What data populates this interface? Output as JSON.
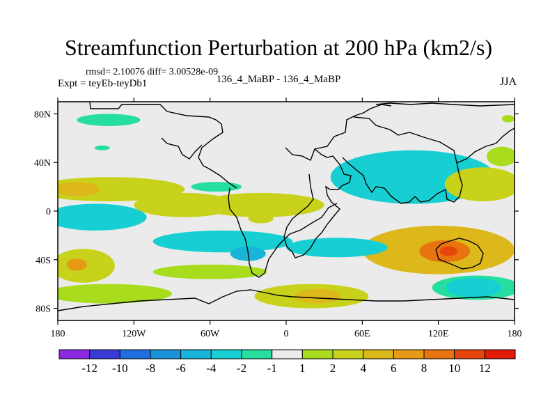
{
  "title": "Streamfunction Perturbation at 200 hPa (km2/s)",
  "stats": "rmsd= 2.10076 diff= 3.00528e-09",
  "expt": "Expt = teyEb-teyDb1",
  "case": "136_4_MaBP - 136_4_MaBP",
  "season": "JJA",
  "colors": {
    "-13": "#8a2be2",
    "-11": "#3a3ad8",
    "-9": "#1f6fe0",
    "-7": "#1a92d8",
    "-5": "#19b5d8",
    "-3": "#17cfd2",
    "-1.5": "#26dea0",
    "0": "#ebebeb",
    "1.5": "#a8dc1c",
    "3": "#c8d21a",
    "5": "#dcb81a",
    "7": "#e69a16",
    "9": "#e8740f",
    "11": "#e6460b",
    "13": "#e21a08"
  },
  "chart_data": {
    "type": "heatmap",
    "projection": "cylindrical-equidistant",
    "xlim": [
      -180,
      180
    ],
    "ylim": [
      -90,
      90
    ],
    "x_ticks": [
      {
        "value": -180,
        "label": "180"
      },
      {
        "value": -120,
        "label": "120W"
      },
      {
        "value": -60,
        "label": "60W"
      },
      {
        "value": 0,
        "label": "0"
      },
      {
        "value": 60,
        "label": "60E"
      },
      {
        "value": 120,
        "label": "120E"
      },
      {
        "value": 180,
        "label": "180"
      }
    ],
    "y_ticks": [
      {
        "value": 80,
        "label": "80N"
      },
      {
        "value": 40,
        "label": "40N"
      },
      {
        "value": 0,
        "label": "0"
      },
      {
        "value": -40,
        "label": "40S"
      },
      {
        "value": -80,
        "label": "80S"
      }
    ],
    "colorbar": {
      "levels": [
        -12,
        -10,
        -8,
        -6,
        -4,
        -2,
        -1,
        1,
        2,
        4,
        6,
        8,
        10,
        12
      ],
      "labels": [
        "-12",
        "-10",
        "-8",
        "-6",
        "-4",
        "-2",
        "-1",
        "1",
        "2",
        "4",
        "6",
        "8",
        "10",
        "12"
      ],
      "bin_values": [
        -13,
        -11,
        -9,
        -7,
        -5,
        -3,
        -1.5,
        0,
        1.5,
        3,
        5,
        7,
        9,
        11,
        13
      ]
    },
    "features": [
      {
        "name": "positive-band-north-pacific",
        "lon": -140,
        "lat": 18,
        "rx": 60,
        "ry": 10,
        "value": 3.5
      },
      {
        "name": "positive-core-pacific",
        "lon": -165,
        "lat": 18,
        "rx": 18,
        "ry": 6,
        "value": 5.0
      },
      {
        "name": "positive-core-atlantic",
        "lon": -20,
        "lat": 5,
        "rx": 50,
        "ry": 10,
        "value": 3.5
      },
      {
        "name": "positive-band-east-pacific",
        "lon": -80,
        "lat": 5,
        "rx": 40,
        "ry": 10,
        "value": 2.5
      },
      {
        "name": "negative-band-tropics",
        "lon": -150,
        "lat": -5,
        "rx": 40,
        "ry": 11,
        "value": -4.0
      },
      {
        "name": "negative-band-tropics-mid",
        "lon": -50,
        "lat": -25,
        "rx": 55,
        "ry": 9,
        "value": -3.5
      },
      {
        "name": "negative-core-brazil",
        "lon": -30,
        "lat": -35,
        "rx": 14,
        "ry": 6,
        "value": -5.0
      },
      {
        "name": "negative-band-south-atlantic",
        "lon": 40,
        "lat": -30,
        "rx": 40,
        "ry": 8,
        "value": -2.5
      },
      {
        "name": "positive-band-south-pacific",
        "lon": -160,
        "lat": -45,
        "rx": 25,
        "ry": 14,
        "value": 3.5
      },
      {
        "name": "positive-core-south-pacific",
        "lon": -165,
        "lat": -44,
        "rx": 8,
        "ry": 5,
        "value": 6.0
      },
      {
        "name": "positive-band-southern-ocean",
        "lon": -60,
        "lat": -50,
        "rx": 45,
        "ry": 6,
        "value": 1.8
      },
      {
        "name": "positive-band-south-indian",
        "lon": 20,
        "lat": -70,
        "rx": 45,
        "ry": 10,
        "value": 2.5
      },
      {
        "name": "positive-core-south-indian",
        "lon": 25,
        "lat": -70,
        "rx": 18,
        "ry": 6,
        "value": 4.0
      },
      {
        "name": "positive-band-subantarctic",
        "lon": -140,
        "lat": -68,
        "rx": 50,
        "ry": 8,
        "value": 1.5
      },
      {
        "name": "positive-large-indian-ocean",
        "lon": 120,
        "lat": -32,
        "rx": 60,
        "ry": 20,
        "value": 5.0
      },
      {
        "name": "positive-core-indian-ocean",
        "lon": 125,
        "lat": -33,
        "rx": 20,
        "ry": 9,
        "value": 8.0
      },
      {
        "name": "positive-peak-indian-ocean",
        "lon": 128,
        "lat": -33,
        "rx": 7,
        "ry": 4,
        "value": 10.0
      },
      {
        "name": "negative-band-north-pacific-asia",
        "lon": 100,
        "lat": 28,
        "rx": 65,
        "ry": 22,
        "value": -2.5
      },
      {
        "name": "negative-core-asia",
        "lon": 95,
        "lat": 30,
        "rx": 30,
        "ry": 10,
        "value": -4.0
      },
      {
        "name": "negative-core-antarctic-east",
        "lon": 148,
        "lat": -63,
        "rx": 22,
        "ry": 8,
        "value": -4.0
      },
      {
        "name": "negative-band-antarctic-east",
        "lon": 150,
        "lat": -63,
        "rx": 35,
        "ry": 10,
        "value": -2.0
      },
      {
        "name": "positive-band-west-pacific",
        "lon": 155,
        "lat": 22,
        "rx": 30,
        "ry": 14,
        "value": 3.0
      },
      {
        "name": "negative-north-atlantic-arctic",
        "lon": -140,
        "lat": 75,
        "rx": 25,
        "ry": 5,
        "value": -2.0
      },
      {
        "name": "negative-small-arctic",
        "lon": -145,
        "lat": 52,
        "rx": 6,
        "ry": 2,
        "value": -2.0
      },
      {
        "name": "negative-small-europe",
        "lon": -55,
        "lat": 20,
        "rx": 20,
        "ry": 4,
        "value": -2.0
      },
      {
        "name": "positive-small-north-africa",
        "lon": -20,
        "lat": -6,
        "rx": 10,
        "ry": 4,
        "value": 2.0
      },
      {
        "name": "positive-small-arctic-east",
        "lon": 175,
        "lat": 76,
        "rx": 5,
        "ry": 3,
        "value": 1.5
      },
      {
        "name": "positive-band-pacific-north-east",
        "lon": 170,
        "lat": 45,
        "rx": 12,
        "ry": 8,
        "value": 1.5
      }
    ]
  }
}
